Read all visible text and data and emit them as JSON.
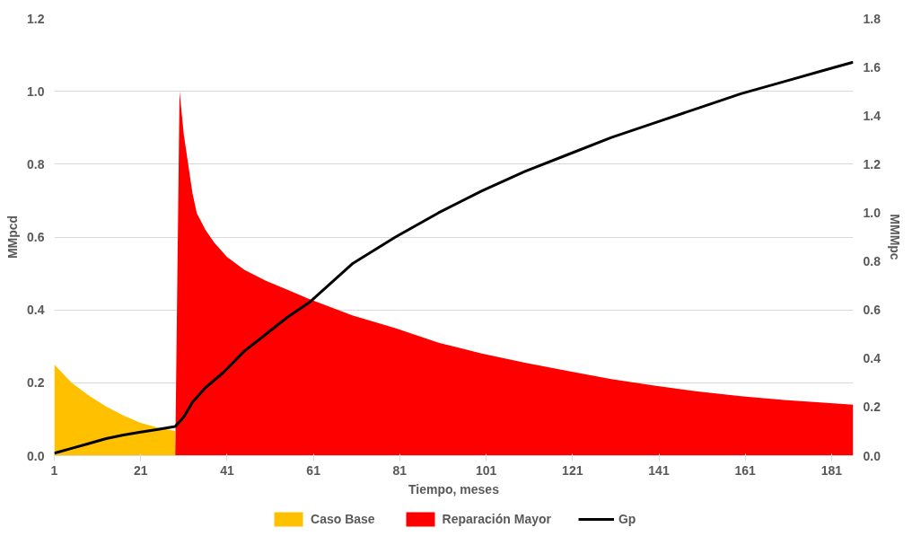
{
  "chart_data": {
    "type": "area",
    "xlabel": "Tiempo, meses",
    "ylabel": "MMpcd",
    "y2label": "MMMpc",
    "xlim": [
      1,
      186
    ],
    "xticks": [
      1,
      21,
      41,
      61,
      81,
      101,
      121,
      141,
      161,
      181
    ],
    "ylim": [
      0,
      1.2
    ],
    "yticks": [
      {
        "value": 0,
        "label": "0.0"
      },
      0.2,
      0.4,
      0.6,
      0.8,
      {
        "value": 1,
        "label": "1.0"
      },
      1.2
    ],
    "y2lim": [
      0,
      1.8
    ],
    "y2ticks": [
      {
        "value": 0,
        "label": "0.0"
      },
      0.2,
      0.4,
      0.6,
      0.8,
      {
        "value": 1,
        "label": "1.0"
      },
      1.2,
      1.4,
      1.6,
      1.8
    ],
    "grid": "y",
    "legend": "bottom",
    "series": [
      {
        "name": "Caso Base",
        "color": "#ffc000",
        "x": [
          1,
          5,
          9,
          13,
          17,
          21,
          25,
          29
        ],
        "values": [
          0.25,
          0.2,
          0.165,
          0.135,
          0.11,
          0.09,
          0.077,
          0.068
        ]
      },
      {
        "name": "Reparación Mayor",
        "color": "#ff0000",
        "x": [
          29,
          30,
          31,
          32,
          33,
          34,
          36,
          38,
          41,
          45,
          50,
          55,
          60,
          70,
          80,
          90,
          100,
          110,
          120,
          130,
          140,
          150,
          160,
          170,
          180,
          186
        ],
        "values": [
          0,
          1.0,
          0.88,
          0.8,
          0.72,
          0.665,
          0.62,
          0.585,
          0.545,
          0.51,
          0.48,
          0.455,
          0.43,
          0.385,
          0.35,
          0.31,
          0.28,
          0.255,
          0.232,
          0.21,
          0.192,
          0.176,
          0.163,
          0.153,
          0.145,
          0.14
        ]
      },
      {
        "name": "Gp",
        "color": "#000000",
        "type": "line",
        "axis": "y2",
        "x": [
          1,
          5,
          9,
          13,
          17,
          21,
          25,
          29,
          31,
          33,
          36,
          40,
          45,
          50,
          55,
          60,
          70,
          80,
          90,
          100,
          110,
          120,
          130,
          140,
          150,
          160,
          170,
          180,
          186
        ],
        "values": [
          0.01,
          0.03,
          0.05,
          0.07,
          0.085,
          0.097,
          0.108,
          0.12,
          0.16,
          0.22,
          0.28,
          0.34,
          0.43,
          0.5,
          0.57,
          0.63,
          0.79,
          0.9,
          1.0,
          1.09,
          1.17,
          1.24,
          1.31,
          1.37,
          1.43,
          1.49,
          1.54,
          1.59,
          1.62
        ]
      }
    ]
  }
}
